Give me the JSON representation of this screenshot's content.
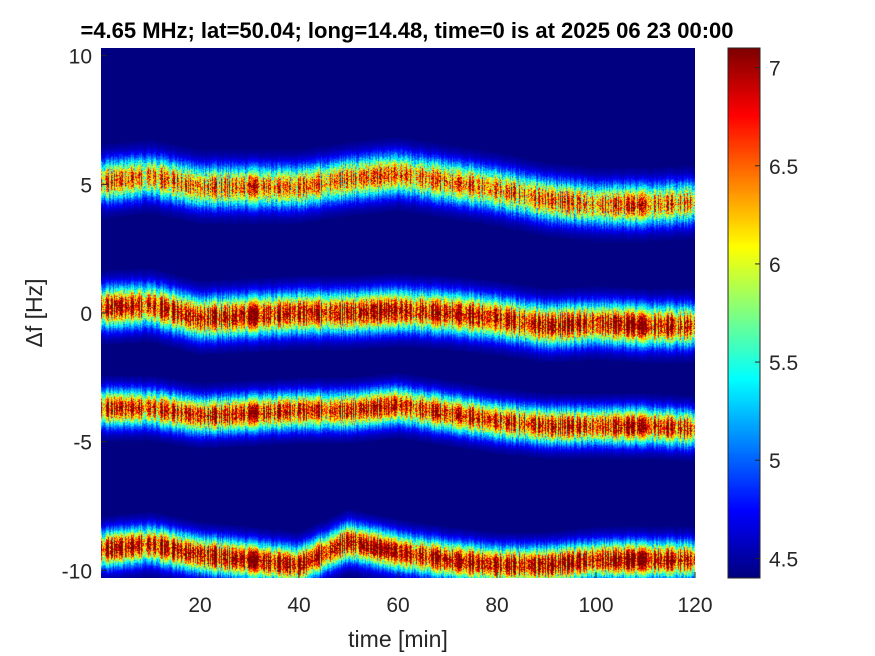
{
  "chart_data": {
    "type": "heatmap",
    "title": "=4.65 MHz;  lat=50.04; long=14.48, time=0 is at 2025 06 23 00:00",
    "xlabel": "time [min]",
    "ylabel": "Δf [Hz]",
    "xlim": [
      0,
      120
    ],
    "ylim": [
      -10.3,
      10.3
    ],
    "xticks": [
      20,
      40,
      60,
      80,
      100,
      120
    ],
    "yticks": [
      10,
      5,
      0,
      -5,
      -10
    ],
    "ytick_labels": [
      "10",
      "5",
      "0",
      "-5",
      "-10"
    ],
    "colorbar": {
      "range": [
        4.4,
        7.1
      ],
      "ticks": [
        7,
        6.5,
        6,
        5.5,
        5,
        4.5
      ],
      "colormap": "jet"
    },
    "background_level": 4.4,
    "bands": [
      {
        "x": [
          0,
          10,
          20,
          30,
          40,
          50,
          60,
          70,
          80,
          90,
          100,
          110,
          120
        ],
        "y": [
          5.1,
          5.3,
          4.9,
          4.9,
          4.9,
          5.2,
          5.4,
          5.1,
          4.8,
          4.4,
          4.2,
          4.2,
          4.3
        ],
        "peak": 6.5,
        "halfwidth": 0.45
      },
      {
        "x": [
          0,
          10,
          20,
          30,
          40,
          50,
          60,
          70,
          80,
          90,
          100,
          110,
          120
        ],
        "y": [
          0.2,
          0.3,
          -0.2,
          -0.1,
          0.0,
          0.0,
          0.1,
          0.0,
          -0.2,
          -0.5,
          -0.4,
          -0.5,
          -0.5
        ],
        "peak": 6.9,
        "halfwidth": 0.45
      },
      {
        "x": [
          0,
          10,
          20,
          30,
          40,
          50,
          60,
          70,
          80,
          90,
          100,
          110,
          120
        ],
        "y": [
          -3.7,
          -3.7,
          -4.0,
          -3.9,
          -3.8,
          -3.8,
          -3.6,
          -3.9,
          -4.2,
          -4.4,
          -4.4,
          -4.4,
          -4.5
        ],
        "peak": 6.8,
        "halfwidth": 0.4
      },
      {
        "x": [
          0,
          10,
          20,
          30,
          40,
          50,
          60,
          70,
          80,
          90,
          100,
          110,
          120
        ],
        "y": [
          -9.2,
          -9.0,
          -9.4,
          -9.6,
          -9.8,
          -8.9,
          -9.3,
          -9.6,
          -9.8,
          -9.8,
          -9.6,
          -9.6,
          -9.6
        ],
        "peak": 7.0,
        "halfwidth": 0.4
      }
    ]
  }
}
